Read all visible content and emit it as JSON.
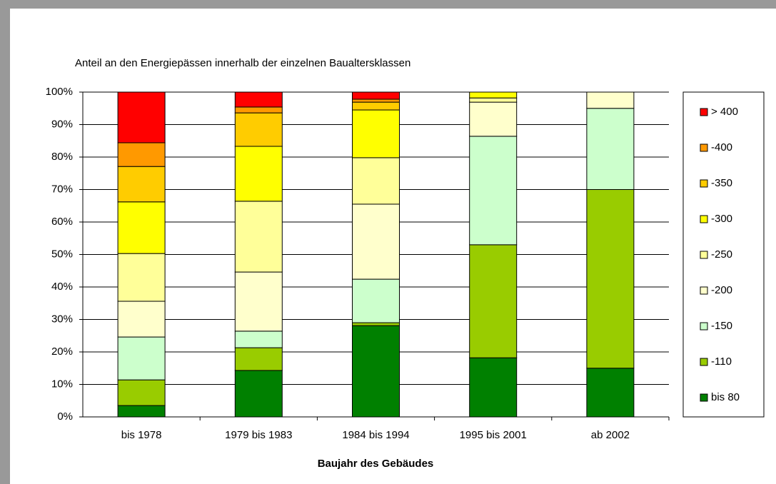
{
  "chart_data": {
    "type": "stacked_bar",
    "title": "Anteil an den Energiepässen innerhalb der einzelnen Baualtersklassen",
    "x_label": "Baujahr des Gebäudes",
    "categories": [
      "bis 1978",
      "1979 bis 1983",
      "1984 bis 1994",
      "1995 bis 2001",
      "ab 2002"
    ],
    "series": [
      {
        "name": "bis 80",
        "color": "#008000",
        "values": [
          3.5,
          14.3,
          28.1,
          18.2,
          15
        ]
      },
      {
        "name": "-110",
        "color": "#99cc00",
        "values": [
          7.9,
          7.0,
          0.9,
          34.8,
          55
        ]
      },
      {
        "name": "-150",
        "color": "#ccffcc",
        "values": [
          13.2,
          5.1,
          13.4,
          33.4,
          25
        ]
      },
      {
        "name": "-200",
        "color": "#ffffcc",
        "values": [
          11,
          18.2,
          23.1,
          10.5,
          5
        ]
      },
      {
        "name": "-250",
        "color": "#ffff99",
        "values": [
          14.7,
          21.8,
          14.3,
          1.3,
          0
        ]
      },
      {
        "name": "-300",
        "color": "#ffff00",
        "values": [
          15.9,
          16.9,
          14.7,
          1.8,
          0
        ]
      },
      {
        "name": "-350",
        "color": "#ffcc00",
        "values": [
          10.9,
          10.3,
          2.4,
          0,
          0
        ]
      },
      {
        "name": "-400",
        "color": "#ff9900",
        "values": [
          7.3,
          1.8,
          0.9,
          0,
          0
        ]
      },
      {
        "name": "> 400",
        "color": "#ff0000",
        "values": [
          15.6,
          4.6,
          2.2,
          0,
          0
        ]
      }
    ],
    "ylim": [
      0,
      100
    ],
    "yticks": [
      {
        "value": 0,
        "label": "0%"
      },
      {
        "value": 10,
        "label": "10%"
      },
      {
        "value": 20,
        "label": "20%"
      },
      {
        "value": 30,
        "label": "30%"
      },
      {
        "value": 40,
        "label": "40%"
      },
      {
        "value": 50,
        "label": "50%"
      },
      {
        "value": 60,
        "label": "60%"
      },
      {
        "value": 70,
        "label": "70%"
      },
      {
        "value": 80,
        "label": "80%"
      },
      {
        "value": 90,
        "label": "90%"
      },
      {
        "value": 100,
        "label": "100%"
      }
    ],
    "grid": true
  }
}
